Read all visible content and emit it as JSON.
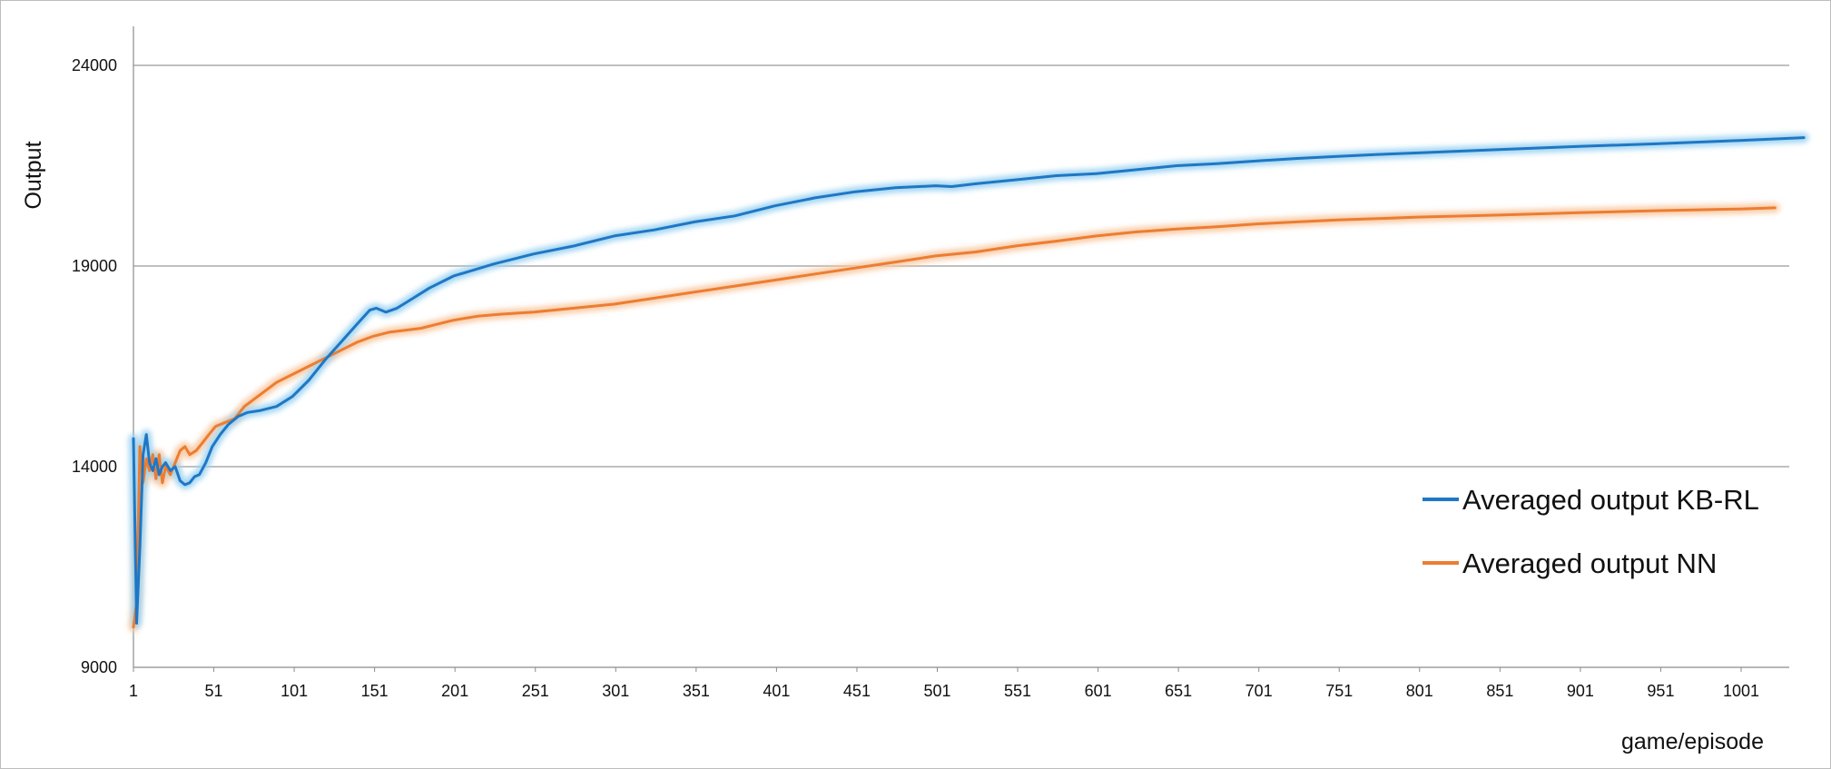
{
  "chart_data": {
    "type": "line",
    "title": "",
    "xlabel": "game/episode",
    "ylabel": "Output",
    "ylim": [
      9000,
      25000
    ],
    "xlim": [
      1,
      1040
    ],
    "y_ticks": [
      9000,
      14000,
      19000,
      24000
    ],
    "x_ticks": [
      1,
      51,
      101,
      151,
      201,
      251,
      301,
      351,
      401,
      451,
      501,
      551,
      601,
      651,
      701,
      751,
      801,
      851,
      901,
      951,
      1001
    ],
    "grid": "horizontal",
    "legend_position": "bottom-right",
    "series": [
      {
        "name": "Averaged output KB-RL",
        "color": "#1f77c4",
        "glow": "#9cd3f2",
        "points": [
          [
            1,
            14700
          ],
          [
            3,
            10100
          ],
          [
            5,
            12000
          ],
          [
            7,
            14300
          ],
          [
            9,
            14800
          ],
          [
            11,
            14100
          ],
          [
            13,
            13900
          ],
          [
            15,
            14200
          ],
          [
            17,
            13800
          ],
          [
            19,
            14000
          ],
          [
            21,
            14100
          ],
          [
            24,
            13900
          ],
          [
            27,
            14000
          ],
          [
            30,
            13650
          ],
          [
            33,
            13550
          ],
          [
            36,
            13600
          ],
          [
            39,
            13750
          ],
          [
            42,
            13800
          ],
          [
            46,
            14100
          ],
          [
            50,
            14500
          ],
          [
            55,
            14800
          ],
          [
            60,
            15050
          ],
          [
            66,
            15250
          ],
          [
            72,
            15350
          ],
          [
            80,
            15400
          ],
          [
            90,
            15500
          ],
          [
            100,
            15750
          ],
          [
            110,
            16150
          ],
          [
            120,
            16650
          ],
          [
            130,
            17100
          ],
          [
            140,
            17550
          ],
          [
            148,
            17900
          ],
          [
            152,
            17950
          ],
          [
            158,
            17850
          ],
          [
            165,
            17950
          ],
          [
            175,
            18200
          ],
          [
            185,
            18450
          ],
          [
            200,
            18750
          ],
          [
            225,
            19050
          ],
          [
            250,
            19300
          ],
          [
            275,
            19500
          ],
          [
            300,
            19750
          ],
          [
            325,
            19900
          ],
          [
            350,
            20100
          ],
          [
            375,
            20250
          ],
          [
            400,
            20500
          ],
          [
            425,
            20700
          ],
          [
            450,
            20850
          ],
          [
            475,
            20950
          ],
          [
            500,
            21000
          ],
          [
            510,
            20980
          ],
          [
            525,
            21050
          ],
          [
            550,
            21150
          ],
          [
            575,
            21250
          ],
          [
            600,
            21300
          ],
          [
            625,
            21400
          ],
          [
            650,
            21500
          ],
          [
            675,
            21550
          ],
          [
            700,
            21620
          ],
          [
            725,
            21680
          ],
          [
            750,
            21730
          ],
          [
            775,
            21780
          ],
          [
            800,
            21820
          ],
          [
            850,
            21900
          ],
          [
            900,
            21980
          ],
          [
            950,
            22050
          ],
          [
            1000,
            22130
          ],
          [
            1040,
            22200
          ]
        ]
      },
      {
        "name": "Averaged output NN",
        "color": "#ed7d31",
        "glow": "#f8c9a3",
        "points": [
          [
            1,
            10000
          ],
          [
            3,
            10600
          ],
          [
            5,
            14500
          ],
          [
            7,
            13600
          ],
          [
            9,
            14200
          ],
          [
            11,
            13900
          ],
          [
            13,
            14300
          ],
          [
            15,
            13700
          ],
          [
            17,
            14300
          ],
          [
            19,
            13600
          ],
          [
            21,
            14000
          ],
          [
            24,
            13800
          ],
          [
            27,
            14100
          ],
          [
            30,
            14400
          ],
          [
            33,
            14500
          ],
          [
            36,
            14300
          ],
          [
            40,
            14400
          ],
          [
            44,
            14600
          ],
          [
            48,
            14800
          ],
          [
            52,
            15000
          ],
          [
            58,
            15100
          ],
          [
            64,
            15200
          ],
          [
            70,
            15500
          ],
          [
            80,
            15800
          ],
          [
            90,
            16100
          ],
          [
            100,
            16300
          ],
          [
            110,
            16500
          ],
          [
            120,
            16700
          ],
          [
            130,
            16900
          ],
          [
            140,
            17100
          ],
          [
            150,
            17250
          ],
          [
            160,
            17350
          ],
          [
            170,
            17400
          ],
          [
            180,
            17450
          ],
          [
            190,
            17550
          ],
          [
            200,
            17650
          ],
          [
            215,
            17750
          ],
          [
            230,
            17800
          ],
          [
            250,
            17850
          ],
          [
            275,
            17950
          ],
          [
            300,
            18050
          ],
          [
            325,
            18200
          ],
          [
            350,
            18350
          ],
          [
            375,
            18500
          ],
          [
            400,
            18650
          ],
          [
            425,
            18800
          ],
          [
            450,
            18950
          ],
          [
            475,
            19100
          ],
          [
            500,
            19250
          ],
          [
            525,
            19350
          ],
          [
            550,
            19500
          ],
          [
            575,
            19620
          ],
          [
            600,
            19750
          ],
          [
            625,
            19850
          ],
          [
            650,
            19920
          ],
          [
            675,
            19980
          ],
          [
            700,
            20050
          ],
          [
            725,
            20100
          ],
          [
            750,
            20150
          ],
          [
            775,
            20180
          ],
          [
            800,
            20220
          ],
          [
            850,
            20270
          ],
          [
            900,
            20330
          ],
          [
            950,
            20380
          ],
          [
            1000,
            20420
          ],
          [
            1022,
            20450
          ]
        ]
      }
    ]
  }
}
